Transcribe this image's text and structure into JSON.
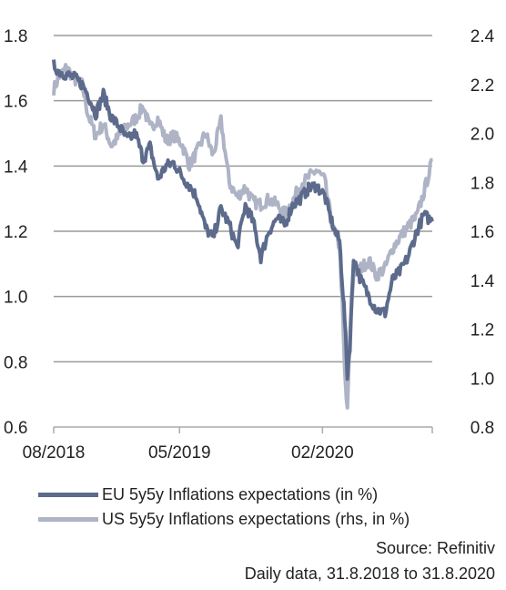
{
  "chart_data": {
    "type": "line",
    "title": "",
    "x_ticks": [
      "08/2018",
      "05/2019",
      "02/2020"
    ],
    "y_left": {
      "range": [
        0.6,
        1.8
      ],
      "ticks": [
        "0.6",
        "0.8",
        "1.0",
        "1.2",
        "1.4",
        "1.6",
        "1.8"
      ]
    },
    "y_right": {
      "range": [
        0.8,
        2.4
      ],
      "ticks": [
        "0.8",
        "1.0",
        "1.2",
        "1.4",
        "1.6",
        "1.8",
        "2.0",
        "2.2",
        "2.4"
      ]
    },
    "grid": true,
    "series": [
      {
        "name": "EU 5y5y Inflations expectations (in %)",
        "axis": "left",
        "color": "#5c6b8c",
        "x": [
          "2018-08-31",
          "2018-09-10",
          "2018-09-25",
          "2018-10-10",
          "2018-10-25",
          "2018-11-05",
          "2018-11-20",
          "2018-12-05",
          "2018-12-20",
          "2019-01-05",
          "2019-01-20",
          "2019-02-05",
          "2019-02-20",
          "2019-03-05",
          "2019-03-20",
          "2019-04-05",
          "2019-04-20",
          "2019-05-05",
          "2019-05-20",
          "2019-06-05",
          "2019-06-20",
          "2019-07-05",
          "2019-07-20",
          "2019-08-05",
          "2019-08-20",
          "2019-09-05",
          "2019-09-20",
          "2019-10-05",
          "2019-10-20",
          "2019-11-05",
          "2019-11-20",
          "2019-12-05",
          "2019-12-20",
          "2020-01-05",
          "2020-01-20",
          "2020-02-05",
          "2020-02-15",
          "2020-02-25",
          "2020-03-05",
          "2020-03-10",
          "2020-03-15",
          "2020-03-20",
          "2020-03-25",
          "2020-04-01",
          "2020-04-15",
          "2020-05-01",
          "2020-05-15",
          "2020-06-01",
          "2020-06-15",
          "2020-07-01",
          "2020-07-15",
          "2020-08-01",
          "2020-08-15",
          "2020-08-31"
        ],
        "values": [
          1.71,
          1.69,
          1.68,
          1.67,
          1.65,
          1.62,
          1.56,
          1.62,
          1.55,
          1.52,
          1.48,
          1.5,
          1.42,
          1.46,
          1.36,
          1.4,
          1.41,
          1.37,
          1.34,
          1.3,
          1.21,
          1.18,
          1.27,
          1.22,
          1.15,
          1.28,
          1.23,
          1.12,
          1.2,
          1.24,
          1.22,
          1.28,
          1.3,
          1.33,
          1.34,
          1.31,
          1.25,
          1.2,
          1.17,
          1.05,
          0.93,
          0.76,
          0.85,
          1.12,
          1.05,
          1.0,
          0.96,
          0.95,
          1.05,
          1.08,
          1.12,
          1.2,
          1.25,
          1.23
        ]
      },
      {
        "name": "US 5y5y Inflations expectations (rhs, in %)",
        "axis": "right",
        "color": "#aeb4c6",
        "x": [
          "2018-08-31",
          "2018-09-10",
          "2018-09-25",
          "2018-10-10",
          "2018-10-25",
          "2018-11-05",
          "2018-11-20",
          "2018-12-05",
          "2018-12-20",
          "2019-01-05",
          "2019-01-20",
          "2019-02-05",
          "2019-02-20",
          "2019-03-05",
          "2019-03-20",
          "2019-04-05",
          "2019-04-20",
          "2019-05-05",
          "2019-05-20",
          "2019-06-05",
          "2019-06-20",
          "2019-07-05",
          "2019-07-20",
          "2019-08-05",
          "2019-08-20",
          "2019-09-05",
          "2019-09-20",
          "2019-10-05",
          "2019-10-20",
          "2019-11-05",
          "2019-11-20",
          "2019-12-05",
          "2019-12-20",
          "2020-01-05",
          "2020-01-20",
          "2020-02-05",
          "2020-02-15",
          "2020-02-25",
          "2020-03-05",
          "2020-03-10",
          "2020-03-15",
          "2020-03-20",
          "2020-03-25",
          "2020-04-01",
          "2020-04-15",
          "2020-05-01",
          "2020-05-15",
          "2020-06-01",
          "2020-06-15",
          "2020-07-01",
          "2020-07-15",
          "2020-08-01",
          "2020-08-15",
          "2020-08-31"
        ],
        "values": [
          2.18,
          2.23,
          2.27,
          2.22,
          2.2,
          2.08,
          1.99,
          2.04,
          1.95,
          1.99,
          2.03,
          2.06,
          2.11,
          2.02,
          2.06,
          1.97,
          1.99,
          1.96,
          1.87,
          1.93,
          2.0,
          1.91,
          2.05,
          1.8,
          1.74,
          1.78,
          1.72,
          1.71,
          1.73,
          1.71,
          1.67,
          1.72,
          1.79,
          1.82,
          1.85,
          1.81,
          1.68,
          1.58,
          1.54,
          1.32,
          1.02,
          0.86,
          1.18,
          1.43,
          1.45,
          1.48,
          1.42,
          1.45,
          1.53,
          1.58,
          1.62,
          1.66,
          1.76,
          1.89
        ]
      }
    ]
  },
  "footer": {
    "source": "Source: Refinitiv",
    "period": "Daily data, 31.8.2018 to 31.8.2020"
  }
}
